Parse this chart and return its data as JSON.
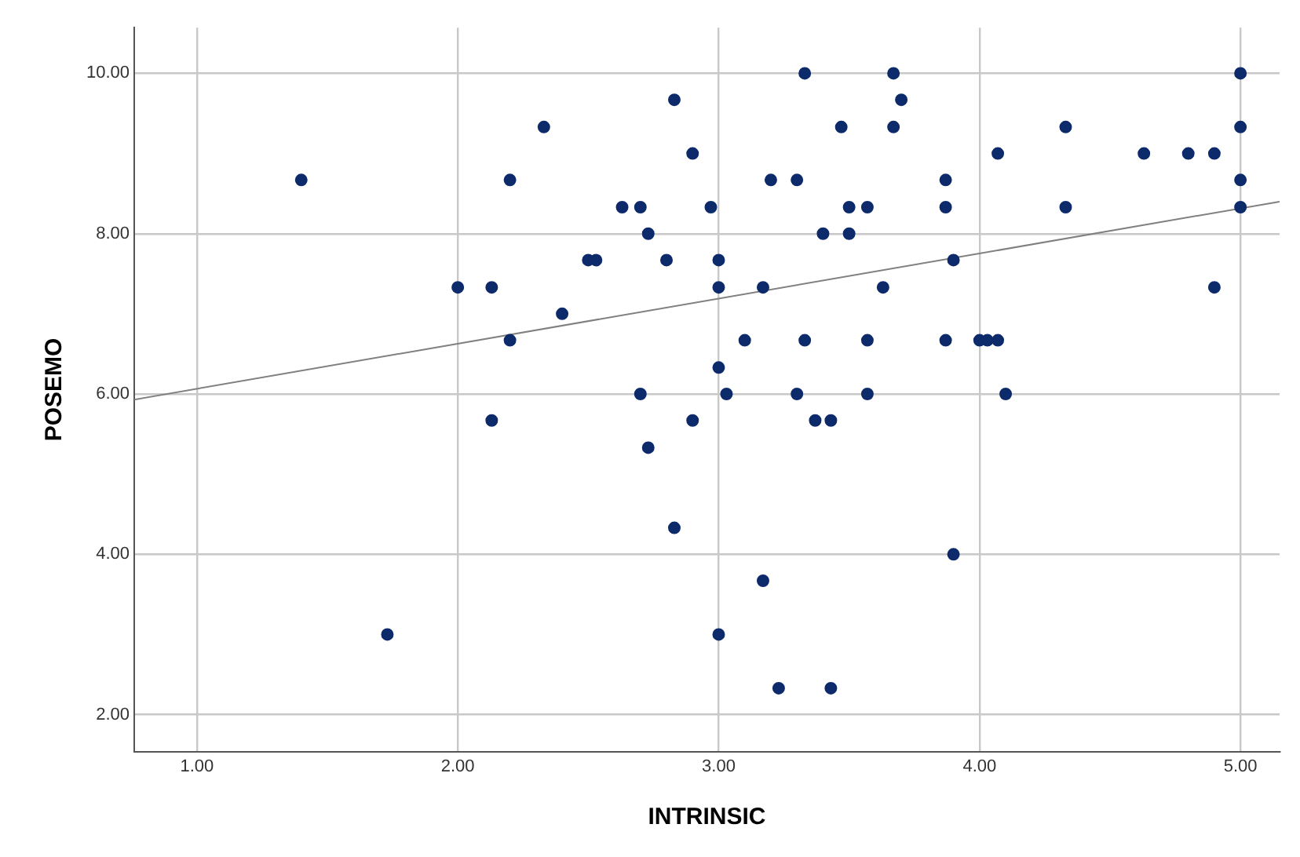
{
  "chart_data": {
    "type": "scatter",
    "xlabel": "INTRINSIC",
    "ylabel": "POSEMO",
    "xlim": [
      0.76,
      5.15
    ],
    "ylim": [
      1.54,
      10.57
    ],
    "xticks": [
      {
        "value": 1,
        "label": "1.00"
      },
      {
        "value": 2,
        "label": "2.00"
      },
      {
        "value": 3,
        "label": "3.00"
      },
      {
        "value": 4,
        "label": "4.00"
      },
      {
        "value": 5,
        "label": "5.00"
      }
    ],
    "yticks": [
      {
        "value": 2,
        "label": "2.00"
      },
      {
        "value": 4,
        "label": "4.00"
      },
      {
        "value": 6,
        "label": "6.00"
      },
      {
        "value": 8,
        "label": "8.00"
      },
      {
        "value": 10,
        "label": "10.00"
      }
    ],
    "grid": true,
    "marker": "circle",
    "legend": false,
    "series": [
      {
        "color": "#0d2a6b",
        "x": [
          1.4,
          1.73,
          2.0,
          2.13,
          2.13,
          2.2,
          2.2,
          2.33,
          2.4,
          2.5,
          2.53,
          2.63,
          2.7,
          2.7,
          2.73,
          2.73,
          2.8,
          2.83,
          2.83,
          2.9,
          2.9,
          2.97,
          3.0,
          3.0,
          3.0,
          3.0,
          3.03,
          3.1,
          3.17,
          3.17,
          3.2,
          3.23,
          3.3,
          3.3,
          3.33,
          3.33,
          3.37,
          3.4,
          3.43,
          3.43,
          3.47,
          3.5,
          3.5,
          3.57,
          3.57,
          3.57,
          3.67,
          3.67,
          3.63,
          3.7,
          3.87,
          3.87,
          3.87,
          3.9,
          3.9,
          4.0,
          4.03,
          4.07,
          4.07,
          4.1,
          4.33,
          4.33,
          4.63,
          4.8,
          4.9,
          4.9,
          5.0,
          5.0,
          5.0,
          5.0
        ],
        "values": [
          8.67,
          3.0,
          7.33,
          7.33,
          5.67,
          8.67,
          6.67,
          9.33,
          7.0,
          7.67,
          7.67,
          8.33,
          8.33,
          6.0,
          8.0,
          5.33,
          7.67,
          9.67,
          4.33,
          9.0,
          5.67,
          8.33,
          7.67,
          7.33,
          6.33,
          3.0,
          6.0,
          6.67,
          7.33,
          3.67,
          8.67,
          2.33,
          6.0,
          8.67,
          6.67,
          10.0,
          5.67,
          8.0,
          5.67,
          2.33,
          9.33,
          8.0,
          8.33,
          8.33,
          6.67,
          6.0,
          10.0,
          9.33,
          7.33,
          9.67,
          8.67,
          8.33,
          6.67,
          7.67,
          4.0,
          6.67,
          6.67,
          6.67,
          9.0,
          6.0,
          9.33,
          8.33,
          9.0,
          9.0,
          9.0,
          7.33,
          10.0,
          9.33,
          8.67,
          8.33
        ]
      },
      {
        "type": "line",
        "color": "#808080",
        "marker": "none",
        "x": [
          0.76,
          5.15
        ],
        "values": [
          5.93,
          8.4
        ]
      }
    ]
  }
}
